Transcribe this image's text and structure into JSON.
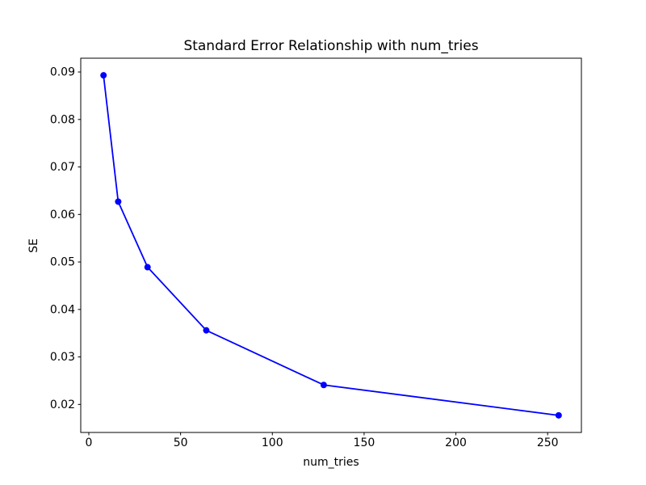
{
  "chart_data": {
    "type": "line",
    "title": "Standard Error Relationship with num_tries",
    "xlabel": "num_tries",
    "ylabel": "SE",
    "x": [
      8,
      16,
      32,
      64,
      128,
      256
    ],
    "y": [
      0.0893,
      0.0627,
      0.0489,
      0.0356,
      0.0241,
      0.0177
    ],
    "series": [
      {
        "name": "SE",
        "x": [
          8,
          16,
          32,
          64,
          128,
          256
        ],
        "y": [
          0.0893,
          0.0627,
          0.0489,
          0.0356,
          0.0241,
          0.0177
        ]
      }
    ],
    "xlim": [
      -4.4,
      268.4
    ],
    "ylim": [
      0.0141,
      0.0929
    ],
    "x_ticks": [
      0,
      50,
      100,
      150,
      200,
      250
    ],
    "x_tick_labels": [
      "0",
      "50",
      "100",
      "150",
      "200",
      "250"
    ],
    "y_ticks": [
      0.02,
      0.03,
      0.04,
      0.05,
      0.06,
      0.07,
      0.08,
      0.09
    ],
    "y_tick_labels": [
      "0.02",
      "0.03",
      "0.04",
      "0.05",
      "0.06",
      "0.07",
      "0.08",
      "0.09"
    ],
    "grid": false,
    "legend": null,
    "colors": {
      "line": "#0000ff",
      "marker": "#0000ff",
      "axis": "#000000",
      "text": "#000000",
      "background": "#ffffff"
    },
    "marker": "circle",
    "marker_radius": 4
  }
}
